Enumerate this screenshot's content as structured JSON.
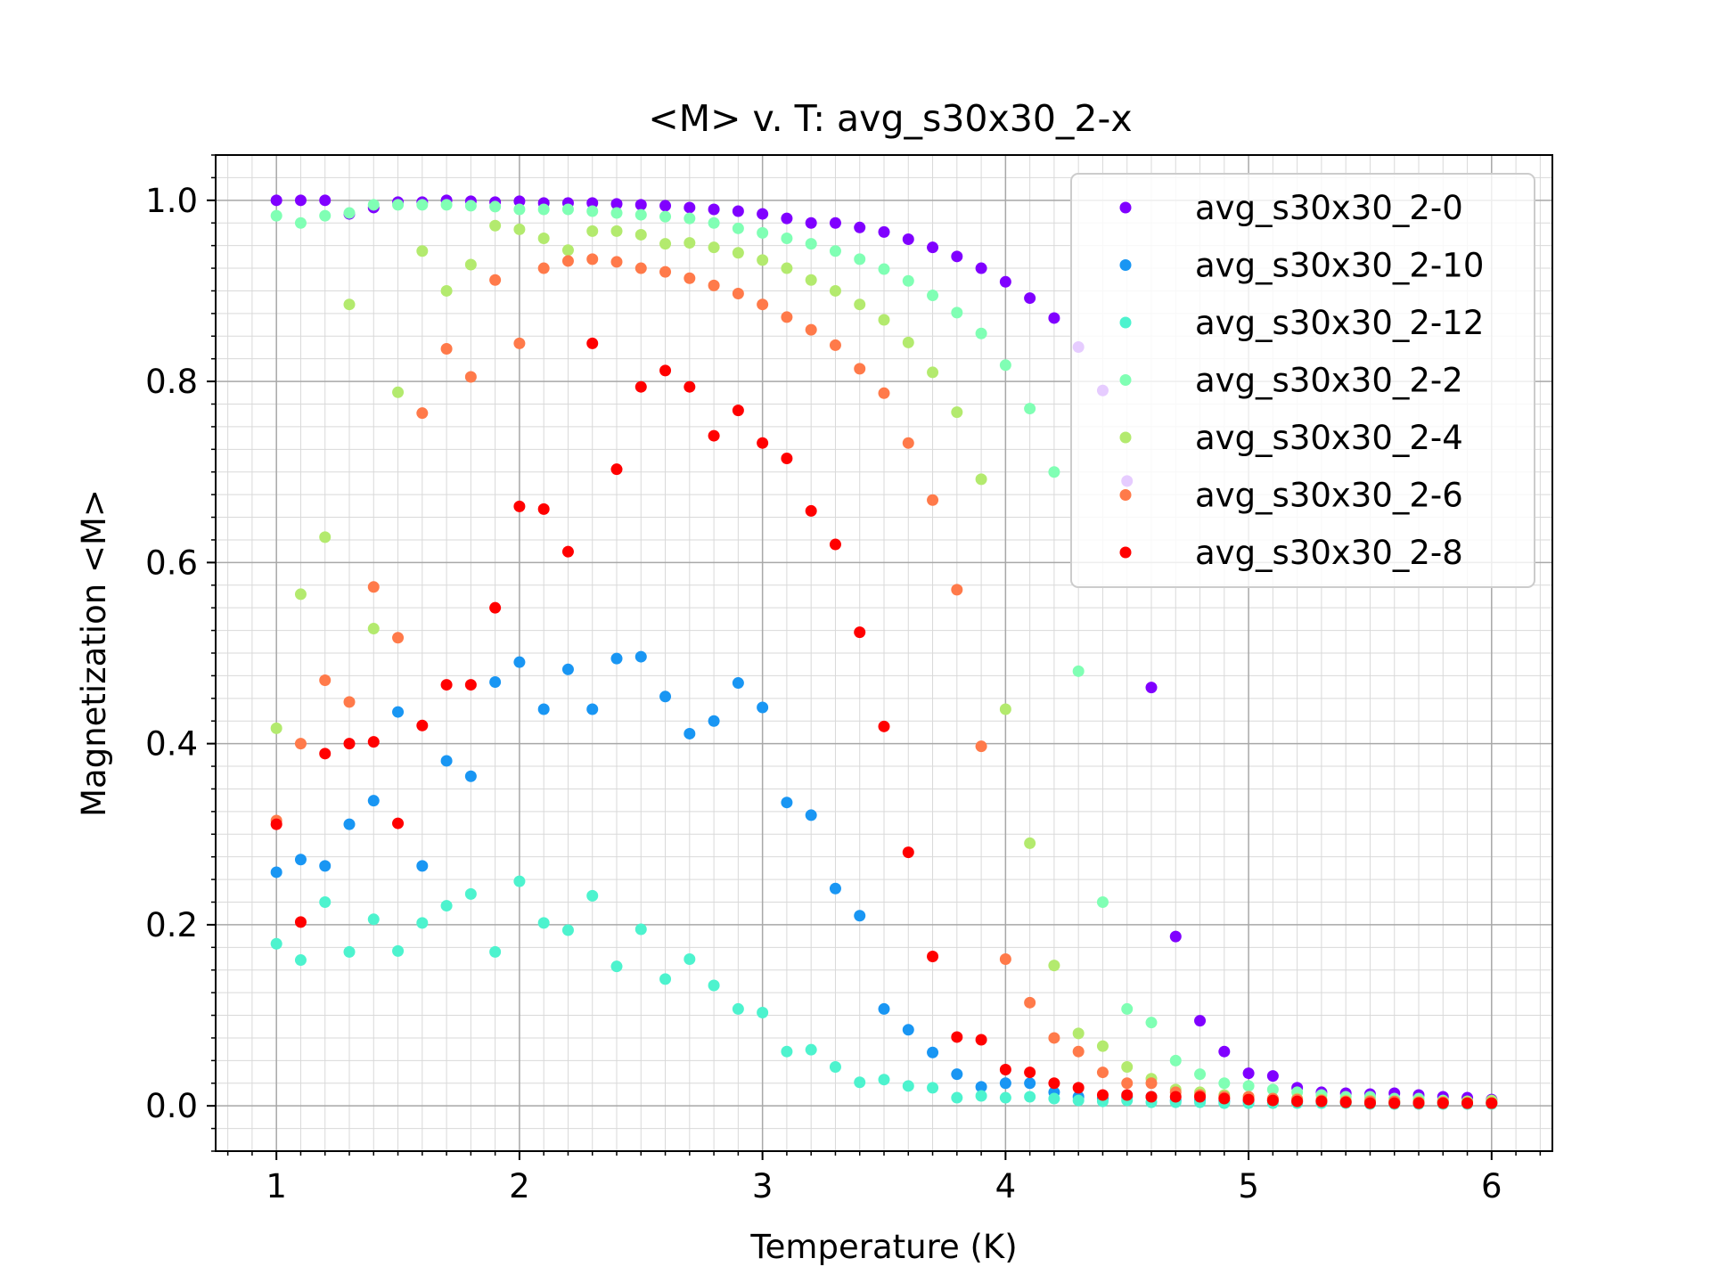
{
  "chart_data": {
    "type": "scatter",
    "title": "<M> v. T: avg_s30x30_2-x",
    "xlabel": "Temperature (K)",
    "ylabel": "Magnetization <M>",
    "xlim": [
      0.75,
      6.25
    ],
    "ylim": [
      -0.05,
      1.05
    ],
    "x_ticks": [
      1,
      2,
      3,
      4,
      5,
      6
    ],
    "x_tick_labels": [
      "1",
      "2",
      "3",
      "4",
      "5",
      "6"
    ],
    "y_ticks": [
      0.0,
      0.2,
      0.4,
      0.6,
      0.8,
      1.0
    ],
    "y_tick_labels": [
      "0.0",
      "0.2",
      "0.4",
      "0.6",
      "0.8",
      "1.0"
    ],
    "grid": "major and minor",
    "legend_position": "top-right",
    "x": [
      1.0,
      1.1,
      1.2,
      1.3,
      1.4,
      1.5,
      1.6,
      1.7,
      1.8,
      1.9,
      2.0,
      2.1,
      2.2,
      2.3,
      2.4,
      2.5,
      2.6,
      2.7,
      2.8,
      2.9,
      3.0,
      3.1,
      3.2,
      3.3,
      3.4,
      3.5,
      3.6,
      3.7,
      3.8,
      3.9,
      4.0,
      4.1,
      4.2,
      4.3,
      4.4,
      4.5,
      4.6,
      4.7,
      4.8,
      4.9,
      5.0,
      5.1,
      5.2,
      5.3,
      5.4,
      5.5,
      5.6,
      5.7,
      5.8,
      5.9,
      6.0
    ],
    "series": [
      {
        "name": "avg_s30x30_2-0",
        "color": "#8000ff",
        "values": [
          1.0,
          1.0,
          1.0,
          0.985,
          0.992,
          0.998,
          0.998,
          1.0,
          0.999,
          0.998,
          0.999,
          0.997,
          0.997,
          0.997,
          0.996,
          0.995,
          0.994,
          0.992,
          0.99,
          0.988,
          0.985,
          0.98,
          0.975,
          0.975,
          0.97,
          0.965,
          0.957,
          0.948,
          0.938,
          0.925,
          0.91,
          0.892,
          0.87,
          0.838,
          0.79,
          0.69,
          0.462,
          0.187,
          0.094,
          0.06,
          0.036,
          0.033,
          0.02,
          0.015,
          0.014,
          0.013,
          0.014,
          0.012,
          0.01,
          0.009,
          0.007
        ]
      },
      {
        "name": "avg_s30x30_2-10",
        "color": "#1996f3",
        "values": [
          0.258,
          0.272,
          0.265,
          0.311,
          0.337,
          0.435,
          0.265,
          0.381,
          0.364,
          0.468,
          0.49,
          0.438,
          0.482,
          0.438,
          0.494,
          0.496,
          0.452,
          0.411,
          0.425,
          0.467,
          0.44,
          0.335,
          0.321,
          0.24,
          0.21,
          0.107,
          0.084,
          0.059,
          0.035,
          0.021,
          0.025,
          0.025,
          0.015,
          0.01,
          0.008,
          0.01,
          0.01,
          0.006,
          0.006,
          0.005,
          0.005,
          0.006,
          0.005,
          0.005,
          0.004,
          0.005,
          0.004,
          0.004,
          0.004,
          0.004,
          0.004
        ]
      },
      {
        "name": "avg_s30x30_2-12",
        "color": "#4df3ce",
        "values": [
          0.179,
          0.161,
          0.225,
          0.17,
          0.206,
          0.171,
          0.202,
          0.221,
          0.234,
          0.17,
          0.248,
          0.202,
          0.194,
          0.232,
          0.154,
          0.195,
          0.14,
          0.162,
          0.133,
          0.107,
          0.103,
          0.06,
          0.062,
          0.043,
          0.026,
          0.029,
          0.022,
          0.02,
          0.009,
          0.011,
          0.009,
          0.01,
          0.008,
          0.006,
          0.005,
          0.006,
          0.004,
          0.004,
          0.004,
          0.003,
          0.003,
          0.003,
          0.003,
          0.003,
          0.003,
          0.002,
          0.002,
          0.002,
          0.002,
          0.002,
          0.002
        ]
      },
      {
        "name": "avg_s30x30_2-2",
        "color": "#80ffb4",
        "values": [
          0.983,
          0.975,
          0.983,
          0.986,
          0.995,
          0.995,
          0.995,
          0.995,
          0.994,
          0.993,
          0.99,
          0.99,
          0.99,
          0.988,
          0.986,
          0.984,
          0.982,
          0.98,
          0.975,
          0.969,
          0.964,
          0.958,
          0.952,
          0.944,
          0.935,
          0.924,
          0.911,
          0.895,
          0.876,
          0.853,
          0.818,
          0.77,
          0.7,
          0.48,
          0.225,
          0.107,
          0.092,
          0.05,
          0.035,
          0.025,
          0.022,
          0.018,
          0.015,
          0.012,
          0.01,
          0.01,
          0.008,
          0.008,
          0.006,
          0.005,
          0.005
        ]
      },
      {
        "name": "avg_s30x30_2-4",
        "color": "#b3ea6e",
        "values": [
          0.417,
          0.565,
          0.628,
          0.885,
          0.527,
          0.788,
          0.944,
          0.9,
          0.929,
          0.972,
          0.968,
          0.958,
          0.945,
          0.966,
          0.966,
          0.962,
          0.952,
          0.953,
          0.948,
          0.942,
          0.934,
          0.925,
          0.912,
          0.9,
          0.885,
          0.868,
          0.843,
          0.81,
          0.766,
          0.692,
          0.438,
          0.29,
          0.155,
          0.08,
          0.066,
          0.043,
          0.03,
          0.018,
          0.015,
          0.012,
          0.01,
          0.008,
          0.008,
          0.007,
          0.006,
          0.006,
          0.005,
          0.005,
          0.005,
          0.005,
          0.006
        ]
      },
      {
        "name": "avg_s30x30_2-6",
        "color": "#ff7a4a",
        "values": [
          0.315,
          0.4,
          0.47,
          0.446,
          0.573,
          0.517,
          0.765,
          0.836,
          0.805,
          0.912,
          0.842,
          0.925,
          0.933,
          0.935,
          0.932,
          0.925,
          0.921,
          0.914,
          0.906,
          0.897,
          0.885,
          0.871,
          0.857,
          0.84,
          0.814,
          0.787,
          0.732,
          0.669,
          0.57,
          0.397,
          0.162,
          0.114,
          0.075,
          0.06,
          0.037,
          0.025,
          0.025,
          0.015,
          0.012,
          0.01,
          0.01,
          0.008,
          0.007,
          0.006,
          0.005,
          0.005,
          0.005,
          0.004,
          0.004,
          0.003,
          0.003
        ]
      },
      {
        "name": "avg_s30x30_2-8",
        "color": "#ff0000",
        "values": [
          0.311,
          0.203,
          0.389,
          0.4,
          0.402,
          0.312,
          0.42,
          0.465,
          0.465,
          0.55,
          0.662,
          0.659,
          0.612,
          0.842,
          0.703,
          0.794,
          0.812,
          0.794,
          0.74,
          0.768,
          0.732,
          0.715,
          0.657,
          0.62,
          0.523,
          0.419,
          0.28,
          0.165,
          0.076,
          0.073,
          0.04,
          0.037,
          0.025,
          0.02,
          0.012,
          0.012,
          0.01,
          0.01,
          0.01,
          0.008,
          0.007,
          0.006,
          0.005,
          0.005,
          0.004,
          0.003,
          0.003,
          0.003,
          0.003,
          0.003,
          0.003
        ]
      }
    ]
  }
}
